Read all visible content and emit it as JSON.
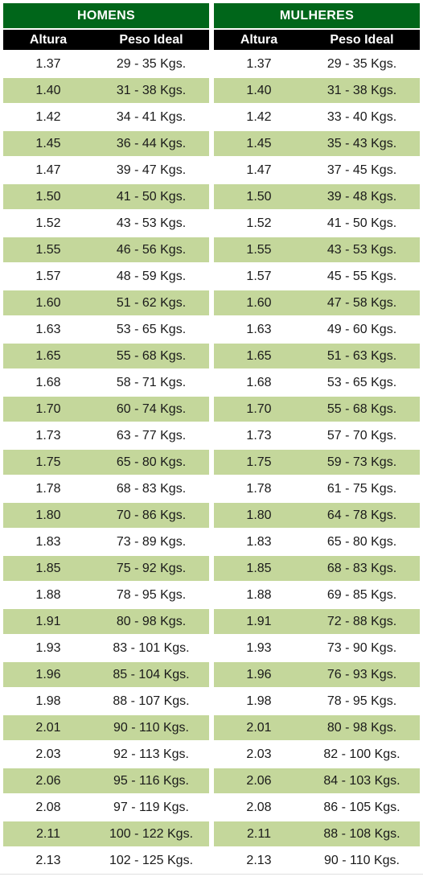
{
  "columns": {
    "height": "Altura",
    "weight": "Peso Ideal"
  },
  "men": {
    "title": "HOMENS",
    "rows": [
      {
        "h": "1.37",
        "w": "29 - 35 Kgs."
      },
      {
        "h": "1.40",
        "w": "31 - 38 Kgs."
      },
      {
        "h": "1.42",
        "w": "34 - 41 Kgs."
      },
      {
        "h": "1.45",
        "w": "36 - 44 Kgs."
      },
      {
        "h": "1.47",
        "w": "39 - 47 Kgs."
      },
      {
        "h": "1.50",
        "w": "41 - 50 Kgs."
      },
      {
        "h": "1.52",
        "w": "43 - 53 Kgs."
      },
      {
        "h": "1.55",
        "w": "46 - 56 Kgs."
      },
      {
        "h": "1.57",
        "w": "48 - 59 Kgs."
      },
      {
        "h": "1.60",
        "w": "51 - 62 Kgs."
      },
      {
        "h": "1.63",
        "w": "53 - 65 Kgs."
      },
      {
        "h": "1.65",
        "w": "55 - 68 Kgs."
      },
      {
        "h": "1.68",
        "w": "58 - 71 Kgs."
      },
      {
        "h": "1.70",
        "w": "60 - 74 Kgs."
      },
      {
        "h": "1.73",
        "w": "63 - 77 Kgs."
      },
      {
        "h": "1.75",
        "w": "65 - 80 Kgs."
      },
      {
        "h": "1.78",
        "w": "68 - 83 Kgs."
      },
      {
        "h": "1.80",
        "w": "70 - 86 Kgs."
      },
      {
        "h": "1.83",
        "w": "73 - 89 Kgs."
      },
      {
        "h": "1.85",
        "w": "75 - 92 Kgs."
      },
      {
        "h": "1.88",
        "w": "78 - 95 Kgs."
      },
      {
        "h": "1.91",
        "w": "80 - 98 Kgs."
      },
      {
        "h": "1.93",
        "w": "83 - 101 Kgs."
      },
      {
        "h": "1.96",
        "w": "85 - 104 Kgs."
      },
      {
        "h": "1.98",
        "w": "88 - 107 Kgs."
      },
      {
        "h": "2.01",
        "w": "90 - 110 Kgs."
      },
      {
        "h": "2.03",
        "w": "92 - 113 Kgs."
      },
      {
        "h": "2.06",
        "w": "95 - 116 Kgs."
      },
      {
        "h": "2.08",
        "w": "97 - 119 Kgs."
      },
      {
        "h": "2.11",
        "w": "100 - 122 Kgs."
      },
      {
        "h": "2.13",
        "w": "102 - 125 Kgs."
      }
    ]
  },
  "women": {
    "title": "MULHERES",
    "rows": [
      {
        "h": "1.37",
        "w": "29 - 35 Kgs."
      },
      {
        "h": "1.40",
        "w": "31 - 38 Kgs."
      },
      {
        "h": "1.42",
        "w": "33 - 40 Kgs."
      },
      {
        "h": "1.45",
        "w": "35 - 43 Kgs."
      },
      {
        "h": "1.47",
        "w": "37 - 45 Kgs."
      },
      {
        "h": "1.50",
        "w": "39 - 48 Kgs."
      },
      {
        "h": "1.52",
        "w": "41 - 50 Kgs."
      },
      {
        "h": "1.55",
        "w": "43 - 53 Kgs."
      },
      {
        "h": "1.57",
        "w": "45 - 55 Kgs."
      },
      {
        "h": "1.60",
        "w": "47 - 58 Kgs."
      },
      {
        "h": "1.63",
        "w": "49 - 60 Kgs."
      },
      {
        "h": "1.65",
        "w": "51 - 63 Kgs."
      },
      {
        "h": "1.68",
        "w": "53 - 65 Kgs."
      },
      {
        "h": "1.70",
        "w": "55 - 68 Kgs."
      },
      {
        "h": "1.73",
        "w": "57 - 70 Kgs."
      },
      {
        "h": "1.75",
        "w": "59 - 73 Kgs."
      },
      {
        "h": "1.78",
        "w": "61 - 75 Kgs."
      },
      {
        "h": "1.80",
        "w": "64 - 78 Kgs."
      },
      {
        "h": "1.83",
        "w": "65 - 80 Kgs."
      },
      {
        "h": "1.85",
        "w": "68 - 83 Kgs."
      },
      {
        "h": "1.88",
        "w": "69 - 85 Kgs."
      },
      {
        "h": "1.91",
        "w": "72 - 88 Kgs."
      },
      {
        "h": "1.93",
        "w": "73 - 90 Kgs."
      },
      {
        "h": "1.96",
        "w": "76 - 93 Kgs."
      },
      {
        "h": "1.98",
        "w": "78 - 95 Kgs."
      },
      {
        "h": "2.01",
        "w": "80 - 98 Kgs."
      },
      {
        "h": "2.03",
        "w": "82 - 100 Kgs."
      },
      {
        "h": "2.06",
        "w": "84 - 103 Kgs."
      },
      {
        "h": "2.08",
        "w": "86 - 105 Kgs."
      },
      {
        "h": "2.11",
        "w": "88 - 108 Kgs."
      },
      {
        "h": "2.13",
        "w": "90 - 110 Kgs."
      }
    ]
  },
  "colors": {
    "title_bg": "#00661a",
    "header_bg": "#000000",
    "band_bg": "#c4d79b"
  }
}
